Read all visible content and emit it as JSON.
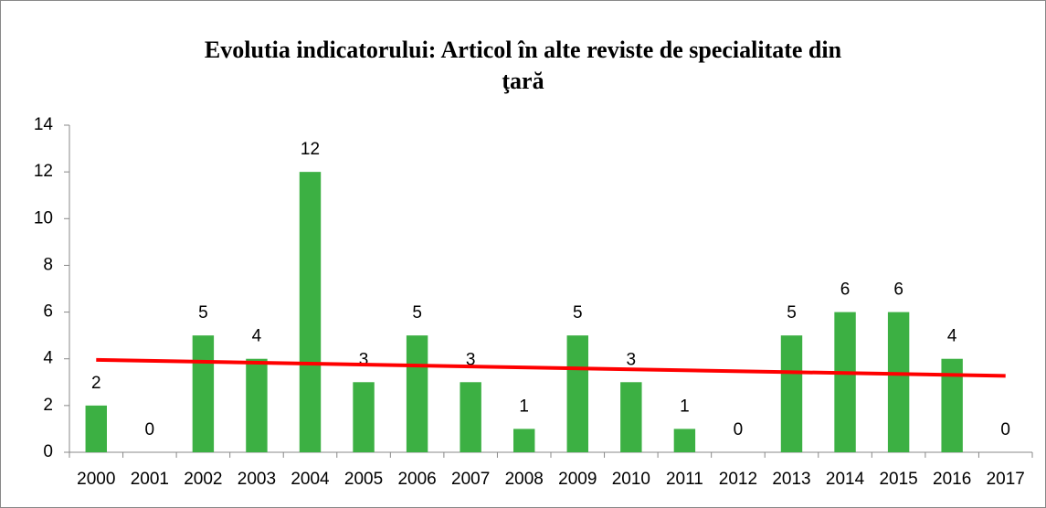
{
  "chart_data": {
    "type": "bar",
    "title": "Evolutia indicatorului: Articol în alte reviste de specialitate din ţară",
    "categories": [
      "2000",
      "2001",
      "2002",
      "2003",
      "2004",
      "2005",
      "2006",
      "2007",
      "2008",
      "2009",
      "2010",
      "2011",
      "2012",
      "2013",
      "2014",
      "2015",
      "2016",
      "2017"
    ],
    "values": [
      2,
      0,
      5,
      4,
      12,
      3,
      5,
      3,
      1,
      5,
      3,
      1,
      0,
      5,
      6,
      6,
      4,
      0
    ],
    "color": "#3cb043",
    "ylim": [
      0,
      14
    ],
    "yticks": [
      0,
      2,
      4,
      6,
      8,
      10,
      12,
      14
    ],
    "grid": false,
    "data_labels": true,
    "trendline": true,
    "trendline_color": "#ff0000"
  }
}
